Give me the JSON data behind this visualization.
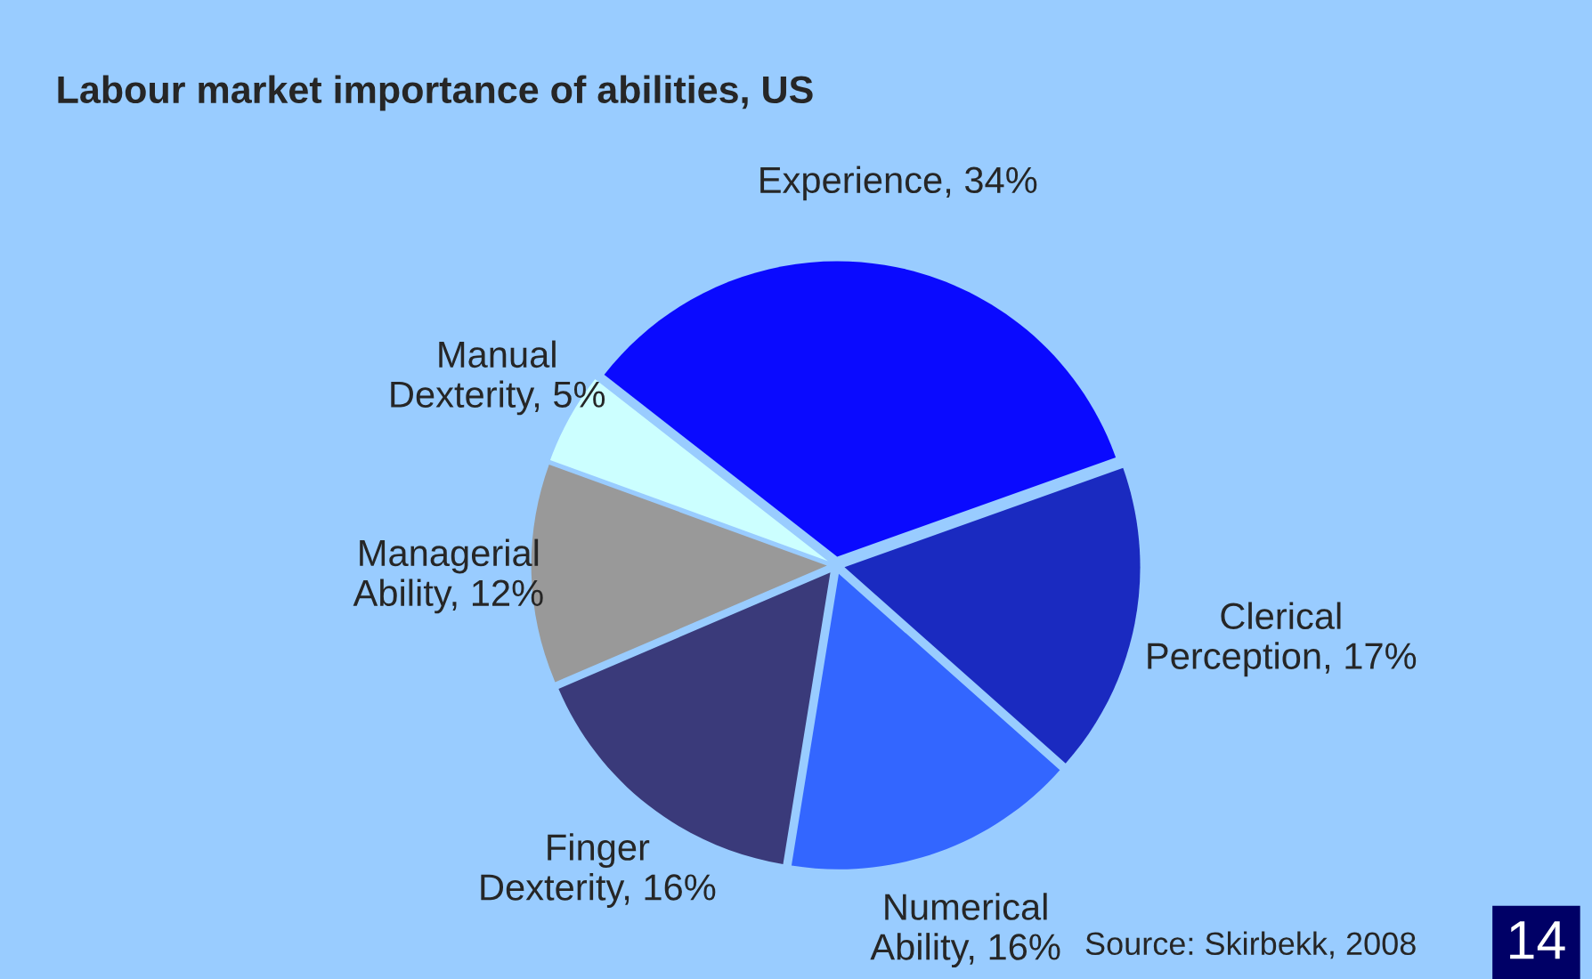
{
  "chart_data": {
    "type": "pie",
    "title": "Labour market importance of abilities, US",
    "categories": [
      "Experience",
      "Clerical Perception",
      "Numerical Ability",
      "Finger Dexterity",
      "Managerial Ability",
      "Manual Dexterity"
    ],
    "values": [
      34,
      17,
      16,
      16,
      12,
      5
    ],
    "colors": [
      "#0a0aff",
      "#1a2ac0",
      "#3366ff",
      "#3a3a7a",
      "#999999",
      "#ccffff"
    ],
    "value_labels": [
      "34%",
      "17%",
      "16%",
      "16%",
      "12%",
      "5%"
    ],
    "annotations": [
      "Source: Skirbekk, 2008",
      "14"
    ]
  }
}
